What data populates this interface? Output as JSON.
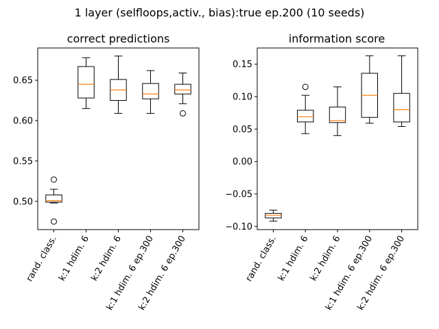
{
  "figure_title": "1 layer (selfloops,activ., bias):true ep.200 (10 seeds)",
  "colors": {
    "median": "#ff7f0e",
    "box": "#000000"
  },
  "chart_data": [
    {
      "type": "box",
      "title": "correct predictions",
      "xlabel": "",
      "ylabel": "",
      "ylim": [
        0.465,
        0.69
      ],
      "yticks": [
        0.5,
        0.55,
        0.6,
        0.65
      ],
      "ytick_labels": [
        "0.50",
        "0.55",
        "0.60",
        "0.65"
      ],
      "categories": [
        "rand. class.",
        "k:1 hdim. 6",
        "k:2 hdim. 6",
        "k:1 hdim. 6 ep.300",
        "k:2 hdim. 6 ep.300"
      ],
      "boxes": [
        {
          "whislo": 0.498,
          "q1": 0.499,
          "med": 0.501,
          "q3": 0.508,
          "whishi": 0.515,
          "fliers": [
            0.527,
            0.475
          ]
        },
        {
          "whislo": 0.615,
          "q1": 0.628,
          "med": 0.645,
          "q3": 0.667,
          "whishi": 0.678,
          "fliers": []
        },
        {
          "whislo": 0.609,
          "q1": 0.625,
          "med": 0.638,
          "q3": 0.651,
          "whishi": 0.68,
          "fliers": []
        },
        {
          "whislo": 0.609,
          "q1": 0.627,
          "med": 0.633,
          "q3": 0.646,
          "whishi": 0.662,
          "fliers": []
        },
        {
          "whislo": 0.621,
          "q1": 0.633,
          "med": 0.638,
          "q3": 0.645,
          "whishi": 0.659,
          "fliers": [
            0.609
          ]
        }
      ]
    },
    {
      "type": "box",
      "title": "information score",
      "xlabel": "",
      "ylabel": "",
      "ylim": [
        -0.105,
        0.175
      ],
      "yticks": [
        -0.1,
        -0.05,
        0.0,
        0.05,
        0.1,
        0.15
      ],
      "ytick_labels": [
        "−0.10",
        "−0.05",
        "0.00",
        "0.05",
        "0.10",
        "0.15"
      ],
      "categories": [
        "rand. class.",
        "k:1 hdim. 6",
        "k:2 hdim. 6",
        "k:1 hdim. 6 ep.300",
        "k:2 hdim. 6 ep.300"
      ],
      "boxes": [
        {
          "whislo": -0.092,
          "q1": -0.087,
          "med": -0.083,
          "q3": -0.08,
          "whishi": -0.075,
          "fliers": []
        },
        {
          "whislo": 0.043,
          "q1": 0.061,
          "med": 0.069,
          "q3": 0.079,
          "whishi": 0.102,
          "fliers": [
            0.115
          ]
        },
        {
          "whislo": 0.04,
          "q1": 0.06,
          "med": 0.063,
          "q3": 0.084,
          "whishi": 0.115,
          "fliers": []
        },
        {
          "whislo": 0.059,
          "q1": 0.068,
          "med": 0.102,
          "q3": 0.136,
          "whishi": 0.163,
          "fliers": []
        },
        {
          "whislo": 0.054,
          "q1": 0.061,
          "med": 0.08,
          "q3": 0.105,
          "whishi": 0.163,
          "fliers": []
        }
      ]
    }
  ]
}
